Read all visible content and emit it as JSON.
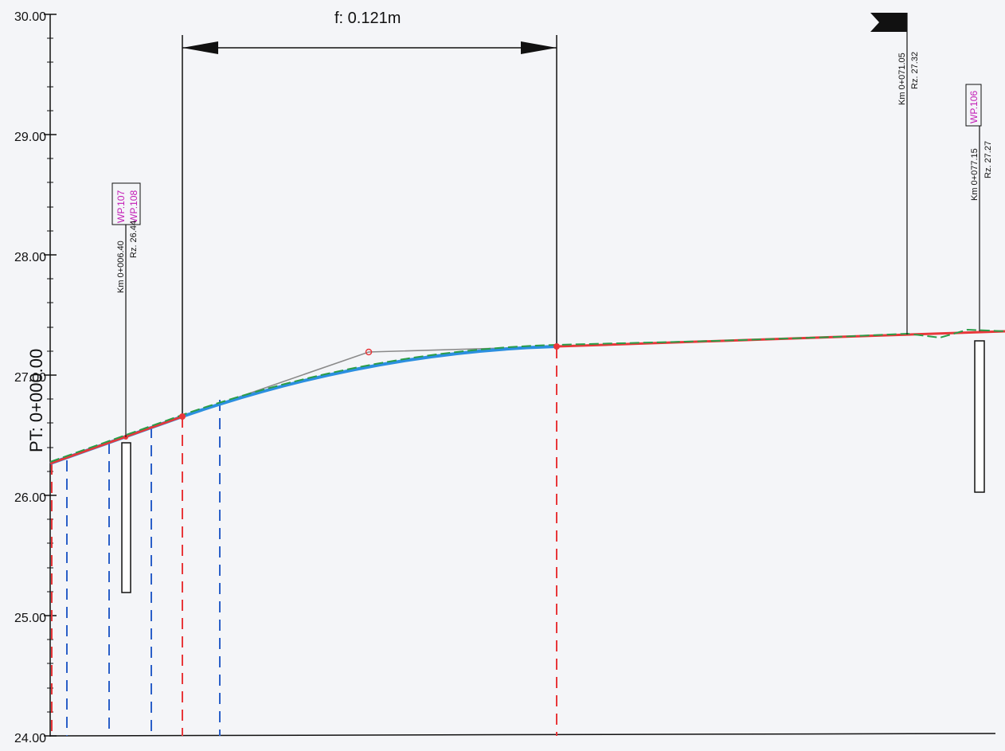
{
  "y_axis": {
    "ticks": [
      "30.00",
      "29.00",
      "28.00",
      "27.00",
      "26.00",
      "25.00",
      "24.00"
    ]
  },
  "station_label": "PT: 0+000.00",
  "dimension": {
    "label": "f: 0.121m"
  },
  "markers": {
    "m1": {
      "wp_a": "WP.107",
      "wp_b": "WP.108",
      "km": "Km 0+006.40",
      "rz": "Rz. 26.44"
    },
    "m2": {
      "km": "Km 0+071.05",
      "rz": "Rz. 27.32"
    },
    "m3": {
      "wp": "WP.106",
      "km": "Km 0+077.15",
      "rz": "Rz. 27.27"
    }
  },
  "colors": {
    "design_line": "#e8373a",
    "terrain_line": "#2a9d48",
    "profile_line": "#2b8fe0",
    "tangent_line": "#8a8a8a",
    "dashed_blue": "#2a5fc8",
    "dashed_red": "#e8373a",
    "wp_text": "#c21ab5"
  }
}
